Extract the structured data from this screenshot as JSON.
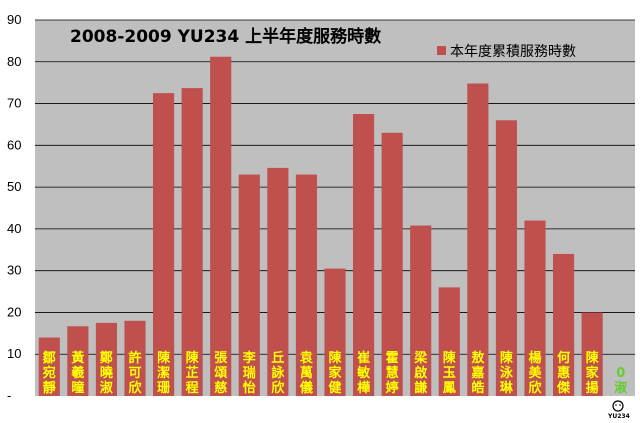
{
  "chart_data": {
    "type": "bar",
    "title": "2008-2009 YU234 上半年度服務時數",
    "legend_position": "top-right",
    "grid": true,
    "ylim": [
      0,
      90
    ],
    "yticks": [
      "-",
      "10",
      "20",
      "30",
      "40",
      "50",
      "60",
      "70",
      "80",
      "90"
    ],
    "categories": [
      "鄒宛靜",
      "黃羲曈",
      "鄭曉淑",
      "許可欣",
      "陳潔珊",
      "陳芷程",
      "張頌慈",
      "李瑞怡",
      "丘詠欣",
      "袁萬儀",
      "陳家健",
      "崔敏樺",
      "霍慧婷",
      "梁啟謙",
      "陳玉鳳",
      "敖嘉皓",
      "陳泳琳",
      "楊美欣",
      "何惠傑",
      "陳家揚",
      "0淑"
    ],
    "series": [
      {
        "name": "本年度累積服務時數",
        "values": [
          14,
          16.7,
          17.5,
          18,
          72.5,
          73.7,
          81.2,
          53,
          54.6,
          53,
          30.5,
          67.5,
          63,
          40.8,
          26,
          74.8,
          66,
          42,
          34,
          20,
          0
        ]
      }
    ],
    "colors": {
      "plot_bg": "#bfbfbf",
      "bar": "#c0504d",
      "grid": "#000000",
      "label_text": "#ffff00",
      "label_text_zero": "#66cc33"
    },
    "logo_text": "YU234"
  }
}
